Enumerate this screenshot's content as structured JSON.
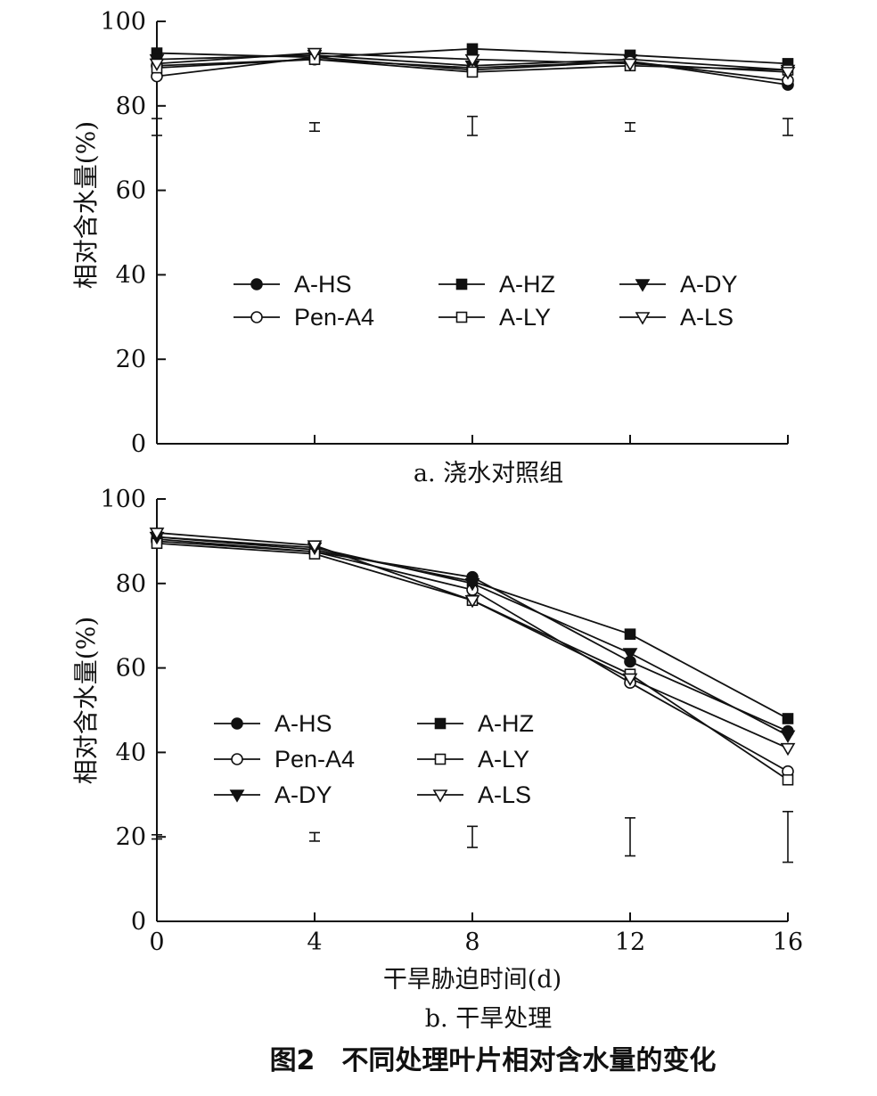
{
  "figure_caption": "图2　不同处理叶片相对含水量的变化",
  "chart_data": [
    {
      "type": "line",
      "subtitle": "a. 浇水对照组",
      "xlabel": "",
      "ylabel": "相对含水量(%)",
      "xlim": [
        0,
        16
      ],
      "ylim": [
        0,
        100
      ],
      "x": [
        0,
        4,
        8,
        12,
        16
      ],
      "x_ticks": [
        0,
        4,
        8,
        12,
        16
      ],
      "x_tick_labels": [],
      "y_ticks": [
        0,
        20,
        40,
        60,
        80,
        100
      ],
      "legend_columns": 3,
      "series": [
        {
          "name": "A-HS",
          "marker": "circle-filled",
          "values": [
            89.5,
            91,
            89,
            90.5,
            85
          ]
        },
        {
          "name": "A-HZ",
          "marker": "square-filled",
          "values": [
            92.5,
            91.5,
            93.5,
            92,
            90
          ]
        },
        {
          "name": "A-DY",
          "marker": "triangle-down-filled",
          "values": [
            91,
            92,
            89.5,
            91,
            88.5
          ]
        },
        {
          "name": "Pen-A4",
          "marker": "circle-open",
          "values": [
            87,
            91.5,
            88.5,
            90.5,
            86
          ]
        },
        {
          "name": "A-LY",
          "marker": "square-open",
          "values": [
            89,
            91,
            88,
            89.5,
            88.5
          ]
        },
        {
          "name": "A-LS",
          "marker": "triangle-down-open",
          "values": [
            90,
            92.5,
            91,
            90,
            88
          ]
        }
      ],
      "error_bars": [
        {
          "x": 0,
          "low": 73,
          "high": 77
        },
        {
          "x": 4,
          "low": 74,
          "high": 76
        },
        {
          "x": 8,
          "low": 73,
          "high": 77.5
        },
        {
          "x": 12,
          "low": 74,
          "high": 76
        },
        {
          "x": 16,
          "low": 73,
          "high": 77
        }
      ]
    },
    {
      "type": "line",
      "subtitle": "b. 干旱处理",
      "xlabel": "干旱胁迫时间(d)",
      "ylabel": "相对含水量(%)",
      "xlim": [
        0,
        16
      ],
      "ylim": [
        0,
        100
      ],
      "x": [
        0,
        4,
        8,
        12,
        16
      ],
      "x_ticks": [
        0,
        4,
        8,
        12,
        16
      ],
      "x_tick_labels": [
        "0",
        "4",
        "8",
        "12",
        "16"
      ],
      "y_ticks": [
        0,
        20,
        40,
        60,
        80,
        100
      ],
      "legend_columns": 2,
      "series": [
        {
          "name": "A-HS",
          "marker": "circle-filled",
          "values": [
            90.5,
            87.5,
            81.5,
            61.5,
            45
          ]
        },
        {
          "name": "A-HZ",
          "marker": "square-filled",
          "values": [
            91,
            88,
            80.5,
            68,
            48
          ]
        },
        {
          "name": "Pen-A4",
          "marker": "circle-open",
          "values": [
            90,
            87.5,
            78.5,
            56.5,
            35.5
          ]
        },
        {
          "name": "A-LY",
          "marker": "square-open",
          "values": [
            89.5,
            87,
            76,
            58.5,
            33.5
          ]
        },
        {
          "name": "A-DY",
          "marker": "triangle-down-filled",
          "values": [
            91,
            88.5,
            80,
            63.5,
            44
          ]
        },
        {
          "name": "A-LS",
          "marker": "triangle-down-open",
          "values": [
            92,
            89,
            76,
            57.5,
            41
          ]
        }
      ],
      "error_bars": [
        {
          "x": 0,
          "low": 19.5,
          "high": 20.5
        },
        {
          "x": 4,
          "low": 19,
          "high": 21
        },
        {
          "x": 8,
          "low": 17.5,
          "high": 22.5
        },
        {
          "x": 12,
          "low": 15.5,
          "high": 24.5
        },
        {
          "x": 16,
          "low": 14,
          "high": 26
        }
      ]
    }
  ]
}
